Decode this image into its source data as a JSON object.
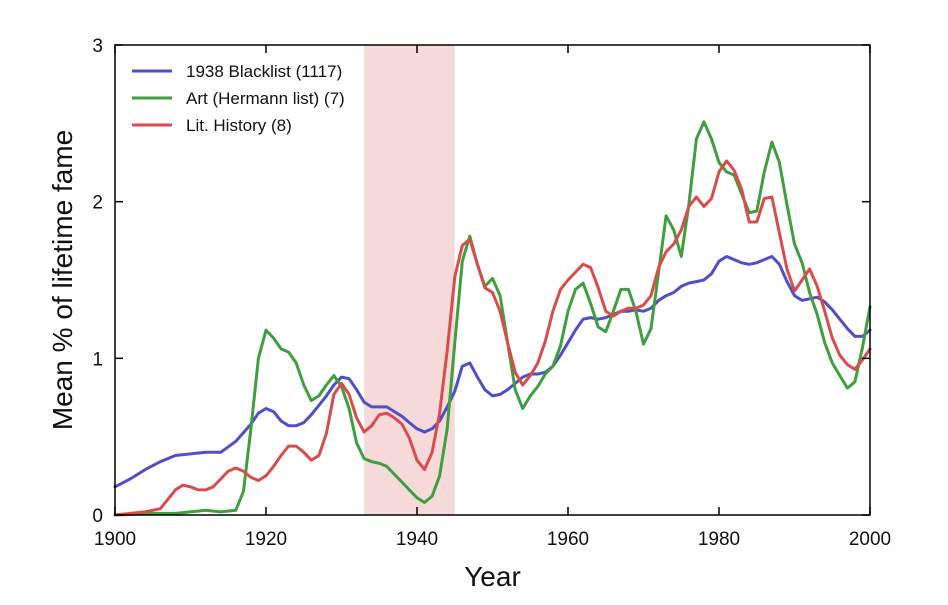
{
  "chart_data": {
    "type": "line",
    "title": "",
    "xlabel": "Year",
    "ylabel": "Mean % of lifetime fame",
    "xlim": [
      1900,
      2000
    ],
    "ylim": [
      0,
      3
    ],
    "x_ticks": [
      "1900",
      "1920",
      "1940",
      "1960",
      "1980",
      "2000"
    ],
    "y_ticks": [
      "0",
      "1",
      "2",
      "3"
    ],
    "x_tick_values": [
      1900,
      1920,
      1940,
      1960,
      1980,
      2000
    ],
    "y_tick_values": [
      0,
      1,
      2,
      3
    ],
    "grid": false,
    "legend_position": "top-left",
    "shaded_region": {
      "x_start": 1933,
      "x_end": 1945,
      "color": "#f6dada"
    },
    "series": [
      {
        "name": "1938 Blacklist (1117)",
        "color": "#4f4fc8",
        "points": [
          [
            1900,
            0.18
          ],
          [
            1902,
            0.23
          ],
          [
            1904,
            0.29
          ],
          [
            1906,
            0.34
          ],
          [
            1908,
            0.38
          ],
          [
            1910,
            0.39
          ],
          [
            1912,
            0.4
          ],
          [
            1914,
            0.4
          ],
          [
            1916,
            0.47
          ],
          [
            1918,
            0.58
          ],
          [
            1919,
            0.65
          ],
          [
            1920,
            0.68
          ],
          [
            1921,
            0.66
          ],
          [
            1922,
            0.6
          ],
          [
            1923,
            0.57
          ],
          [
            1924,
            0.57
          ],
          [
            1925,
            0.59
          ],
          [
            1926,
            0.64
          ],
          [
            1927,
            0.7
          ],
          [
            1928,
            0.76
          ],
          [
            1929,
            0.83
          ],
          [
            1930,
            0.88
          ],
          [
            1931,
            0.87
          ],
          [
            1932,
            0.8
          ],
          [
            1933,
            0.72
          ],
          [
            1934,
            0.69
          ],
          [
            1935,
            0.69
          ],
          [
            1936,
            0.69
          ],
          [
            1937,
            0.66
          ],
          [
            1938,
            0.63
          ],
          [
            1939,
            0.59
          ],
          [
            1940,
            0.55
          ],
          [
            1941,
            0.53
          ],
          [
            1942,
            0.55
          ],
          [
            1943,
            0.6
          ],
          [
            1944,
            0.69
          ],
          [
            1945,
            0.79
          ],
          [
            1946,
            0.95
          ],
          [
            1947,
            0.97
          ],
          [
            1948,
            0.88
          ],
          [
            1949,
            0.8
          ],
          [
            1950,
            0.76
          ],
          [
            1951,
            0.77
          ],
          [
            1952,
            0.8
          ],
          [
            1953,
            0.84
          ],
          [
            1954,
            0.88
          ],
          [
            1955,
            0.9
          ],
          [
            1956,
            0.9
          ],
          [
            1957,
            0.91
          ],
          [
            1958,
            0.95
          ],
          [
            1959,
            1.02
          ],
          [
            1960,
            1.1
          ],
          [
            1961,
            1.18
          ],
          [
            1962,
            1.25
          ],
          [
            1963,
            1.26
          ],
          [
            1964,
            1.25
          ],
          [
            1965,
            1.26
          ],
          [
            1966,
            1.28
          ],
          [
            1967,
            1.3
          ],
          [
            1968,
            1.3
          ],
          [
            1969,
            1.31
          ],
          [
            1970,
            1.3
          ],
          [
            1971,
            1.32
          ],
          [
            1972,
            1.37
          ],
          [
            1973,
            1.4
          ],
          [
            1974,
            1.42
          ],
          [
            1975,
            1.46
          ],
          [
            1976,
            1.48
          ],
          [
            1977,
            1.49
          ],
          [
            1978,
            1.5
          ],
          [
            1979,
            1.54
          ],
          [
            1980,
            1.62
          ],
          [
            1981,
            1.65
          ],
          [
            1982,
            1.63
          ],
          [
            1983,
            1.61
          ],
          [
            1984,
            1.6
          ],
          [
            1985,
            1.61
          ],
          [
            1986,
            1.63
          ],
          [
            1987,
            1.65
          ],
          [
            1988,
            1.6
          ],
          [
            1989,
            1.49
          ],
          [
            1990,
            1.4
          ],
          [
            1991,
            1.37
          ],
          [
            1992,
            1.38
          ],
          [
            1993,
            1.39
          ],
          [
            1994,
            1.36
          ],
          [
            1995,
            1.31
          ],
          [
            1996,
            1.25
          ],
          [
            1997,
            1.19
          ],
          [
            1998,
            1.14
          ],
          [
            1999,
            1.14
          ],
          [
            2000,
            1.18
          ]
        ]
      },
      {
        "name": "Art (Hermann list) (7)",
        "color": "#3f9f3f",
        "points": [
          [
            1900,
            0.0
          ],
          [
            1905,
            0.01
          ],
          [
            1908,
            0.01
          ],
          [
            1910,
            0.02
          ],
          [
            1912,
            0.03
          ],
          [
            1914,
            0.02
          ],
          [
            1916,
            0.03
          ],
          [
            1917,
            0.15
          ],
          [
            1918,
            0.55
          ],
          [
            1919,
            1.0
          ],
          [
            1920,
            1.18
          ],
          [
            1921,
            1.13
          ],
          [
            1922,
            1.06
          ],
          [
            1923,
            1.04
          ],
          [
            1924,
            0.97
          ],
          [
            1925,
            0.83
          ],
          [
            1926,
            0.73
          ],
          [
            1927,
            0.76
          ],
          [
            1928,
            0.83
          ],
          [
            1929,
            0.89
          ],
          [
            1930,
            0.82
          ],
          [
            1931,
            0.68
          ],
          [
            1932,
            0.46
          ],
          [
            1933,
            0.36
          ],
          [
            1934,
            0.34
          ],
          [
            1935,
            0.33
          ],
          [
            1936,
            0.31
          ],
          [
            1937,
            0.26
          ],
          [
            1938,
            0.21
          ],
          [
            1939,
            0.16
          ],
          [
            1940,
            0.11
          ],
          [
            1941,
            0.08
          ],
          [
            1942,
            0.12
          ],
          [
            1943,
            0.25
          ],
          [
            1944,
            0.55
          ],
          [
            1945,
            1.1
          ],
          [
            1946,
            1.62
          ],
          [
            1947,
            1.78
          ],
          [
            1948,
            1.6
          ],
          [
            1949,
            1.46
          ],
          [
            1950,
            1.51
          ],
          [
            1951,
            1.4
          ],
          [
            1952,
            1.1
          ],
          [
            1953,
            0.8
          ],
          [
            1954,
            0.68
          ],
          [
            1955,
            0.76
          ],
          [
            1956,
            0.82
          ],
          [
            1957,
            0.9
          ],
          [
            1958,
            0.95
          ],
          [
            1959,
            1.08
          ],
          [
            1960,
            1.3
          ],
          [
            1961,
            1.44
          ],
          [
            1962,
            1.48
          ],
          [
            1963,
            1.35
          ],
          [
            1964,
            1.2
          ],
          [
            1965,
            1.17
          ],
          [
            1966,
            1.3
          ],
          [
            1967,
            1.44
          ],
          [
            1968,
            1.44
          ],
          [
            1969,
            1.3
          ],
          [
            1970,
            1.09
          ],
          [
            1971,
            1.19
          ],
          [
            1972,
            1.55
          ],
          [
            1973,
            1.91
          ],
          [
            1974,
            1.82
          ],
          [
            1975,
            1.65
          ],
          [
            1976,
            1.98
          ],
          [
            1977,
            2.4
          ],
          [
            1978,
            2.51
          ],
          [
            1979,
            2.4
          ],
          [
            1980,
            2.25
          ],
          [
            1981,
            2.19
          ],
          [
            1982,
            2.17
          ],
          [
            1983,
            2.05
          ],
          [
            1984,
            1.93
          ],
          [
            1985,
            1.94
          ],
          [
            1986,
            2.19
          ],
          [
            1987,
            2.38
          ],
          [
            1988,
            2.25
          ],
          [
            1989,
            1.98
          ],
          [
            1990,
            1.73
          ],
          [
            1991,
            1.61
          ],
          [
            1992,
            1.42
          ],
          [
            1993,
            1.28
          ],
          [
            1994,
            1.1
          ],
          [
            1995,
            0.97
          ],
          [
            1996,
            0.89
          ],
          [
            1997,
            0.81
          ],
          [
            1998,
            0.85
          ],
          [
            1999,
            1.07
          ],
          [
            2000,
            1.33
          ]
        ]
      },
      {
        "name": "Lit. History (8)",
        "color": "#d94c4c",
        "points": [
          [
            1900,
            0.0
          ],
          [
            1902,
            0.01
          ],
          [
            1904,
            0.02
          ],
          [
            1906,
            0.04
          ],
          [
            1907,
            0.1
          ],
          [
            1908,
            0.16
          ],
          [
            1909,
            0.19
          ],
          [
            1910,
            0.18
          ],
          [
            1911,
            0.16
          ],
          [
            1912,
            0.16
          ],
          [
            1913,
            0.18
          ],
          [
            1914,
            0.23
          ],
          [
            1915,
            0.28
          ],
          [
            1916,
            0.3
          ],
          [
            1917,
            0.28
          ],
          [
            1918,
            0.24
          ],
          [
            1919,
            0.22
          ],
          [
            1920,
            0.25
          ],
          [
            1921,
            0.31
          ],
          [
            1922,
            0.38
          ],
          [
            1923,
            0.44
          ],
          [
            1924,
            0.44
          ],
          [
            1925,
            0.4
          ],
          [
            1926,
            0.35
          ],
          [
            1927,
            0.38
          ],
          [
            1928,
            0.52
          ],
          [
            1929,
            0.77
          ],
          [
            1930,
            0.84
          ],
          [
            1931,
            0.77
          ],
          [
            1932,
            0.62
          ],
          [
            1933,
            0.53
          ],
          [
            1934,
            0.57
          ],
          [
            1935,
            0.64
          ],
          [
            1936,
            0.65
          ],
          [
            1937,
            0.62
          ],
          [
            1938,
            0.58
          ],
          [
            1939,
            0.49
          ],
          [
            1940,
            0.35
          ],
          [
            1941,
            0.29
          ],
          [
            1942,
            0.4
          ],
          [
            1943,
            0.65
          ],
          [
            1944,
            1.05
          ],
          [
            1945,
            1.52
          ],
          [
            1946,
            1.72
          ],
          [
            1947,
            1.76
          ],
          [
            1948,
            1.6
          ],
          [
            1949,
            1.45
          ],
          [
            1950,
            1.42
          ],
          [
            1951,
            1.3
          ],
          [
            1952,
            1.1
          ],
          [
            1953,
            0.91
          ],
          [
            1954,
            0.83
          ],
          [
            1955,
            0.89
          ],
          [
            1956,
            0.97
          ],
          [
            1957,
            1.11
          ],
          [
            1958,
            1.3
          ],
          [
            1959,
            1.44
          ],
          [
            1960,
            1.5
          ],
          [
            1961,
            1.55
          ],
          [
            1962,
            1.6
          ],
          [
            1963,
            1.58
          ],
          [
            1964,
            1.45
          ],
          [
            1965,
            1.3
          ],
          [
            1966,
            1.27
          ],
          [
            1967,
            1.3
          ],
          [
            1968,
            1.32
          ],
          [
            1969,
            1.32
          ],
          [
            1970,
            1.34
          ],
          [
            1971,
            1.4
          ],
          [
            1972,
            1.58
          ],
          [
            1973,
            1.68
          ],
          [
            1974,
            1.73
          ],
          [
            1975,
            1.82
          ],
          [
            1976,
            1.97
          ],
          [
            1977,
            2.03
          ],
          [
            1978,
            1.97
          ],
          [
            1979,
            2.02
          ],
          [
            1980,
            2.19
          ],
          [
            1981,
            2.26
          ],
          [
            1982,
            2.2
          ],
          [
            1983,
            2.08
          ],
          [
            1984,
            1.87
          ],
          [
            1985,
            1.87
          ],
          [
            1986,
            2.02
          ],
          [
            1987,
            2.03
          ],
          [
            1988,
            1.8
          ],
          [
            1989,
            1.57
          ],
          [
            1990,
            1.43
          ],
          [
            1991,
            1.5
          ],
          [
            1992,
            1.57
          ],
          [
            1993,
            1.46
          ],
          [
            1994,
            1.3
          ],
          [
            1995,
            1.13
          ],
          [
            1996,
            1.02
          ],
          [
            1997,
            0.96
          ],
          [
            1998,
            0.93
          ],
          [
            1999,
            0.99
          ],
          [
            2000,
            1.06
          ]
        ]
      }
    ]
  }
}
